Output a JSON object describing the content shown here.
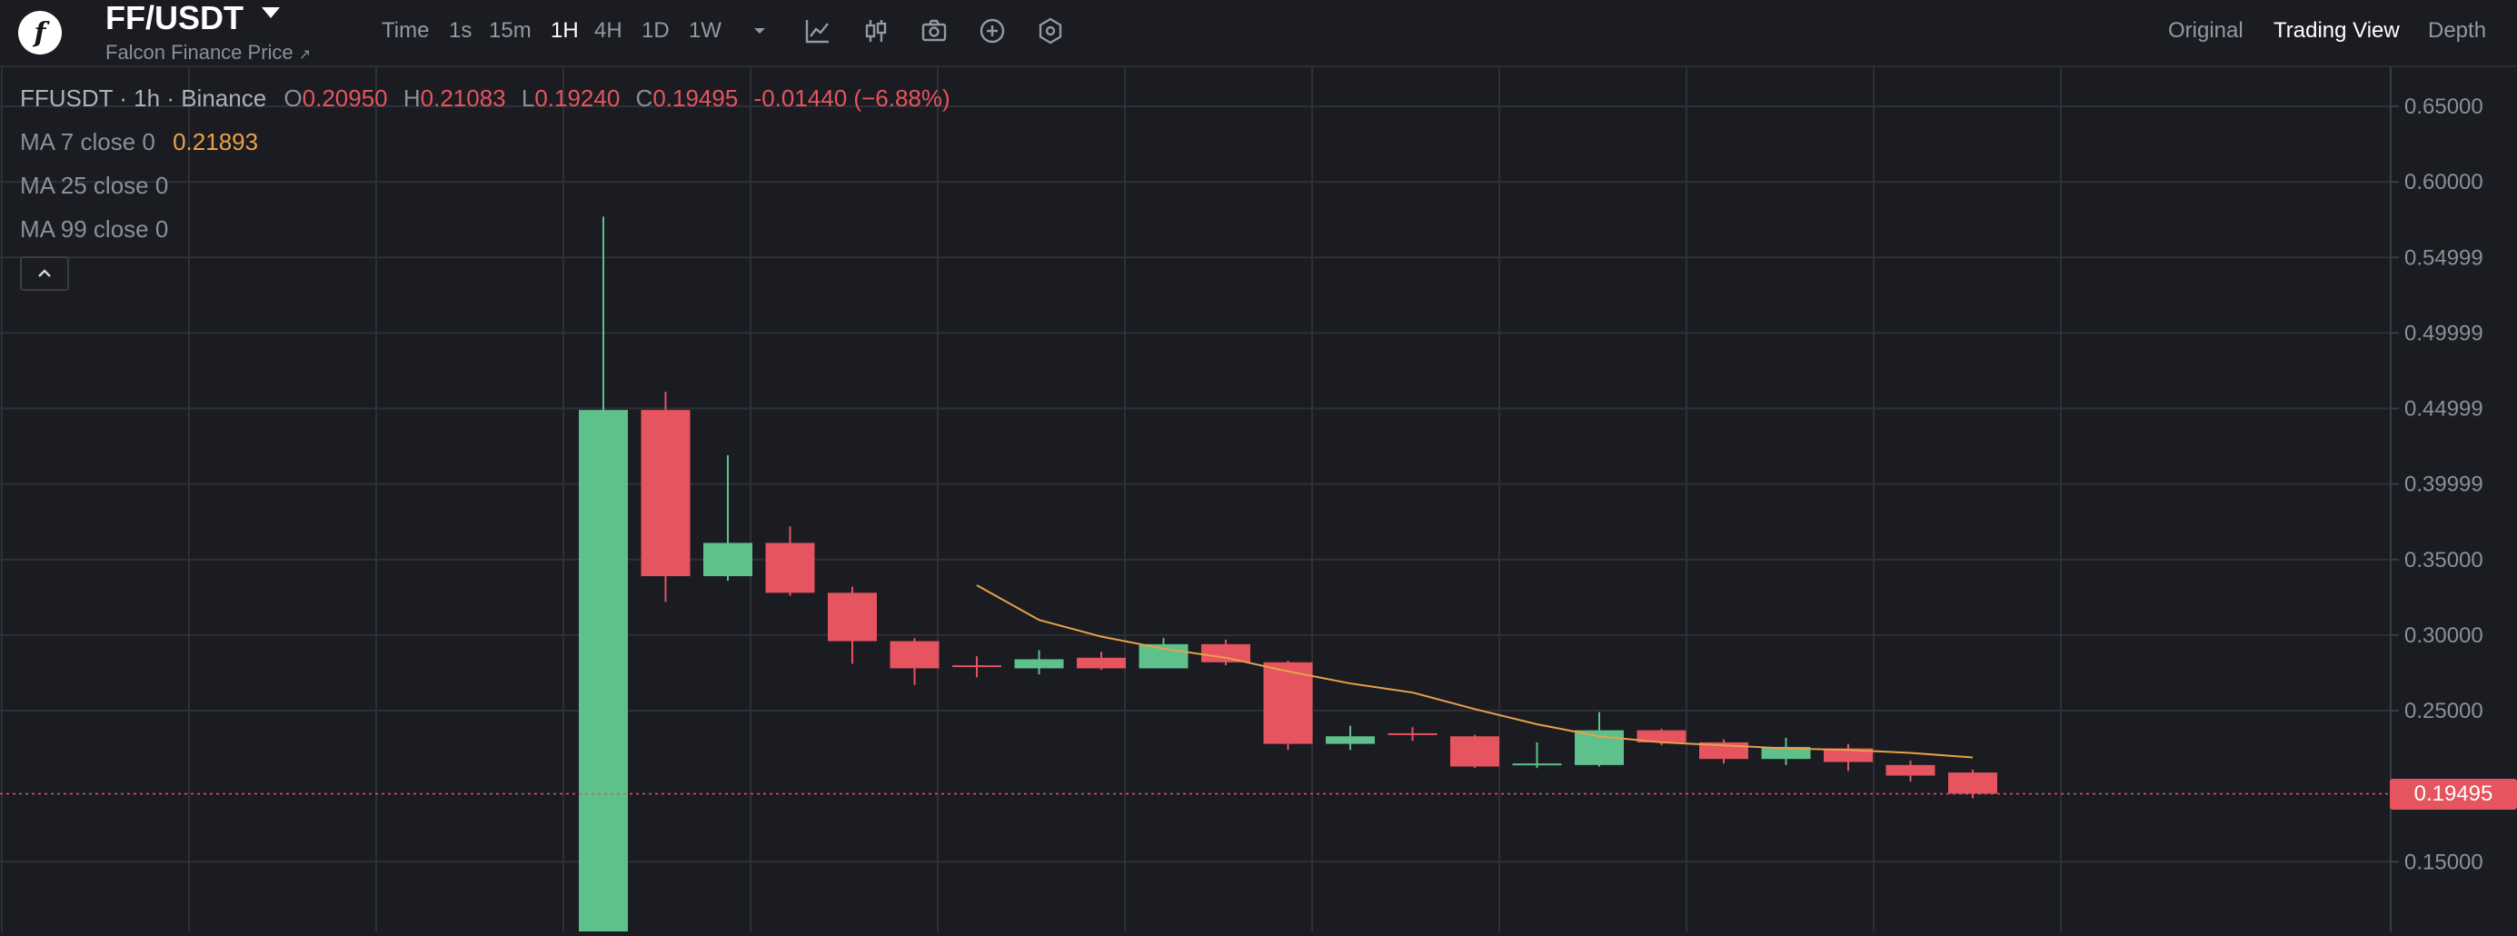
{
  "header": {
    "pair": "FF/USDT",
    "subtitle": "Falcon Finance Price",
    "subtitle_arrow": "↗",
    "timeframes": [
      "Time",
      "1s",
      "15m",
      "1H",
      "4H",
      "1D",
      "1W"
    ],
    "active_timeframe": "1H",
    "views": [
      "Original",
      "Trading View",
      "Depth"
    ],
    "active_view": "Trading View",
    "tool_icons": [
      "chevron-down-icon",
      "indicator-icon",
      "candle-type-icon",
      "camera-icon",
      "add-icon",
      "settings-hex-icon"
    ]
  },
  "legend": {
    "symbol_line": "FFUSDT · 1h · Binance",
    "open_label": "O",
    "open": "0.20950",
    "high_label": "H",
    "high": "0.21083",
    "low_label": "L",
    "low": "0.19240",
    "close_label": "C",
    "close": "0.19495",
    "change": "-0.01440 (−6.88%)",
    "ma7_label": "MA 7 close 0",
    "ma7_value": "0.21893",
    "ma25_label": "MA 25 close 0",
    "ma99_label": "MA 99 close 0"
  },
  "colors": {
    "up": "#5ec08a",
    "down": "#e5545f",
    "ma7": "#e8a14b",
    "grid": "#2e3037",
    "background": "#1b1c21"
  },
  "chart_data": {
    "type": "candlestick",
    "symbol": "FFUSDT",
    "interval": "1h",
    "exchange": "Binance",
    "ylim": [
      0.1,
      0.67
    ],
    "y_ticks": [
      "0.65000",
      "0.60000",
      "0.54999",
      "0.49999",
      "0.44999",
      "0.39999",
      "0.35000",
      "0.30000",
      "0.25000",
      "0.15000"
    ],
    "last_price": "0.19495",
    "candles": [
      {
        "o": 0.1,
        "h": 0.577,
        "l": 0.1,
        "c": 0.449
      },
      {
        "o": 0.449,
        "h": 0.461,
        "l": 0.322,
        "c": 0.339
      },
      {
        "o": 0.339,
        "h": 0.419,
        "l": 0.336,
        "c": 0.361
      },
      {
        "o": 0.361,
        "h": 0.372,
        "l": 0.326,
        "c": 0.328
      },
      {
        "o": 0.328,
        "h": 0.332,
        "l": 0.281,
        "c": 0.296
      },
      {
        "o": 0.296,
        "h": 0.298,
        "l": 0.267,
        "c": 0.278
      },
      {
        "o": 0.28,
        "h": 0.286,
        "l": 0.272,
        "c": 0.279
      },
      {
        "o": 0.278,
        "h": 0.29,
        "l": 0.274,
        "c": 0.284
      },
      {
        "o": 0.285,
        "h": 0.289,
        "l": 0.277,
        "c": 0.278
      },
      {
        "o": 0.278,
        "h": 0.298,
        "l": 0.278,
        "c": 0.294
      },
      {
        "o": 0.294,
        "h": 0.297,
        "l": 0.28,
        "c": 0.282
      },
      {
        "o": 0.282,
        "h": 0.283,
        "l": 0.224,
        "c": 0.228
      },
      {
        "o": 0.228,
        "h": 0.24,
        "l": 0.224,
        "c": 0.233
      },
      {
        "o": 0.235,
        "h": 0.239,
        "l": 0.23,
        "c": 0.234
      },
      {
        "o": 0.233,
        "h": 0.234,
        "l": 0.212,
        "c": 0.213
      },
      {
        "o": 0.214,
        "h": 0.229,
        "l": 0.212,
        "c": 0.215
      },
      {
        "o": 0.214,
        "h": 0.249,
        "l": 0.213,
        "c": 0.237
      },
      {
        "o": 0.237,
        "h": 0.238,
        "l": 0.227,
        "c": 0.229
      },
      {
        "o": 0.229,
        "h": 0.231,
        "l": 0.215,
        "c": 0.218
      },
      {
        "o": 0.218,
        "h": 0.232,
        "l": 0.214,
        "c": 0.226
      },
      {
        "o": 0.225,
        "h": 0.228,
        "l": 0.21,
        "c": 0.216
      },
      {
        "o": 0.214,
        "h": 0.217,
        "l": 0.203,
        "c": 0.207
      },
      {
        "o": 0.209,
        "h": 0.211,
        "l": 0.192,
        "c": 0.195
      }
    ],
    "ma7": [
      null,
      null,
      null,
      null,
      null,
      null,
      0.333,
      0.31,
      0.299,
      0.291,
      0.285,
      0.276,
      0.268,
      0.262,
      0.251,
      0.241,
      0.233,
      0.229,
      0.227,
      0.225,
      0.224,
      0.222,
      0.219
    ]
  }
}
